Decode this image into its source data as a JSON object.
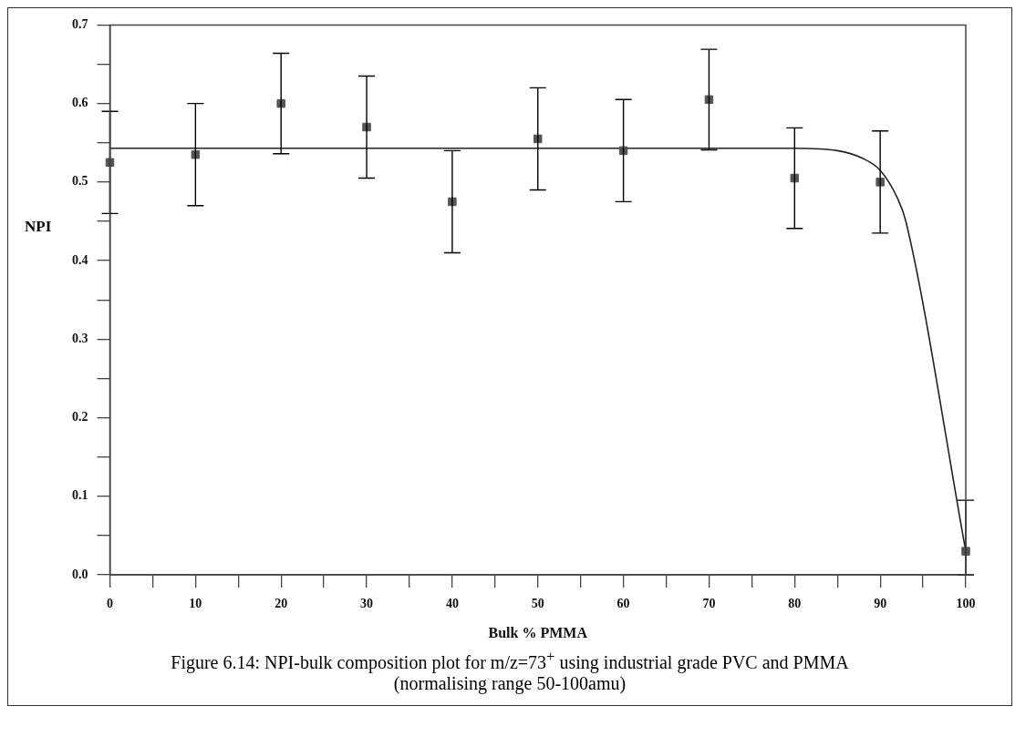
{
  "chart_data": {
    "type": "scatter",
    "xlabel": "Bulk % PMMA",
    "ylabel": "NPI",
    "annotations": [
      "Figure 6.14:  NPI-bulk composition plot for m/z=73$^{+}$ using industrial grade PVC and PMMA\n(normalising range 50-100amu)"
    ],
    "xlim": [
      0,
      100
    ],
    "ylim": [
      0,
      0.7
    ],
    "xticks": [
      0,
      {
        "value": 5,
        "label": null
      },
      10,
      {
        "value": 15,
        "label": null
      },
      20,
      {
        "value": 25,
        "label": null
      },
      30,
      {
        "value": 35,
        "label": null
      },
      40,
      {
        "value": 45,
        "label": null
      },
      50,
      {
        "value": 55,
        "label": null
      },
      60,
      {
        "value": 65,
        "label": null
      },
      70,
      {
        "value": 75,
        "label": null
      },
      80,
      {
        "value": 85,
        "label": null
      },
      90,
      {
        "value": 95,
        "label": null
      },
      100
    ],
    "yticks": [
      {
        "value": 0,
        "label": "0.0"
      },
      {
        "value": 0.05,
        "label": null
      },
      0.1,
      {
        "value": 0.15,
        "label": null
      },
      0.2,
      {
        "value": 0.25,
        "label": null
      },
      0.3,
      {
        "value": 0.35,
        "label": null
      },
      0.4,
      {
        "value": 0.45,
        "label": null
      },
      0.5,
      {
        "value": 0.55,
        "label": null
      },
      0.6,
      {
        "value": 0.65,
        "label": null
      },
      0.7
    ],
    "grid": false,
    "legend": false,
    "series": [
      {
        "type": "scatter",
        "marker": "square",
        "color": "#555555",
        "x": [
          0,
          10,
          20,
          30,
          40,
          50,
          60,
          70,
          80,
          90,
          100
        ],
        "values": [
          0.525,
          0.535,
          0.6,
          0.57,
          0.475,
          0.555,
          0.54,
          0.605,
          0.505,
          0.5,
          0.03
        ],
        "errors": [
          0.065,
          0.065,
          0.064,
          0.065,
          0.065,
          0.065,
          0.065,
          0.064,
          0.064,
          0.065,
          [
            0,
            0.095
          ]
        ]
      },
      {
        "type": "line",
        "marker": "none",
        "line_style": "solid",
        "color": "#222222",
        "x": [
          0,
          80,
          85,
          88,
          90,
          92,
          93,
          100
        ],
        "values": [
          0.543,
          0.543,
          0.54,
          0.53,
          0.515,
          0.48,
          0.45,
          0.03
        ]
      }
    ]
  }
}
